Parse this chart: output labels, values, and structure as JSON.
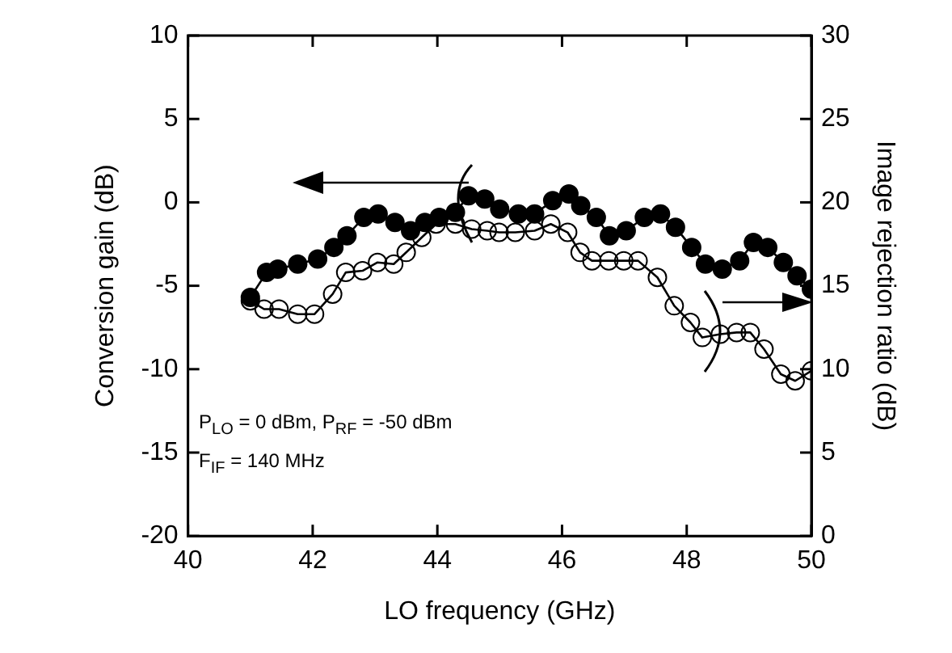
{
  "chart_data": {
    "type": "line",
    "xlabel": "LO frequency (GHz)",
    "ylabel": "Conversion gain (dB)",
    "y2label": "Image rejection ratio (dB)",
    "xlim": [
      40,
      50
    ],
    "xticks": [
      40,
      42,
      44,
      46,
      48,
      50
    ],
    "ylim": [
      -20,
      10
    ],
    "yticks": [
      -20,
      -15,
      -10,
      -5,
      0,
      5,
      10
    ],
    "y2lim": [
      0,
      30
    ],
    "y2ticks": [
      0,
      5,
      10,
      15,
      20,
      25,
      30
    ],
    "marker": "circle",
    "line_style": "solid",
    "grid": false,
    "legend": false,
    "annotations": [
      "P$_{LO}$ = 0 dBm, P$_{RF}$ = -50 dBm",
      "F$_{IF}$ = 140 MHz"
    ],
    "series": [
      {
        "color": "#000000",
        "x": [
          41.0,
          41.26,
          41.44,
          41.76,
          42.08,
          42.34,
          42.55,
          42.82,
          43.05,
          43.32,
          43.57,
          43.8,
          44.03,
          44.29,
          44.5,
          44.76,
          45.0,
          45.3,
          45.56,
          45.85,
          46.11,
          46.3,
          46.55,
          46.76,
          47.03,
          47.32,
          47.58,
          47.82,
          48.08,
          48.3,
          48.57,
          48.85,
          49.07,
          49.3,
          49.55,
          49.77,
          50.0
        ],
        "values": [
          -5.7,
          -4.2,
          -4.0,
          -3.7,
          -3.4,
          -2.7,
          -2.0,
          -0.9,
          -0.7,
          -1.2,
          -1.7,
          -1.2,
          -0.9,
          -0.6,
          0.4,
          0.2,
          -0.4,
          -0.7,
          -0.7,
          0.1,
          0.5,
          -0.2,
          -0.9,
          -2.0,
          -1.7,
          -0.9,
          -0.7,
          -1.5,
          -2.7,
          -3.7,
          -4.0,
          -3.5,
          -2.4,
          -2.7,
          -3.6,
          -4.4,
          -5.2
        ]
      },
      {
        "color": "#000000",
        "axis": "y2",
        "x": [
          41.0,
          41.22,
          41.46,
          41.76,
          42.03,
          42.32,
          42.53,
          42.8,
          43.04,
          43.3,
          43.5,
          43.75,
          43.98,
          44.29,
          44.55,
          44.8,
          44.99,
          45.25,
          45.56,
          45.82,
          46.09,
          46.29,
          46.48,
          46.75,
          46.99,
          47.22,
          47.53,
          47.8,
          48.06,
          48.25,
          48.54,
          48.8,
          49.02,
          49.24,
          49.51,
          49.74,
          50.0
        ],
        "values": [
          14.1,
          13.6,
          13.6,
          13.3,
          13.3,
          14.5,
          15.8,
          15.9,
          16.4,
          16.3,
          17.0,
          17.9,
          18.7,
          18.7,
          18.4,
          18.3,
          18.2,
          18.2,
          18.3,
          18.7,
          18.2,
          17.0,
          16.5,
          16.5,
          16.5,
          16.5,
          15.5,
          13.8,
          12.8,
          11.9,
          12.1,
          12.2,
          12.2,
          11.2,
          9.7,
          9.3,
          9.9
        ]
      }
    ]
  }
}
